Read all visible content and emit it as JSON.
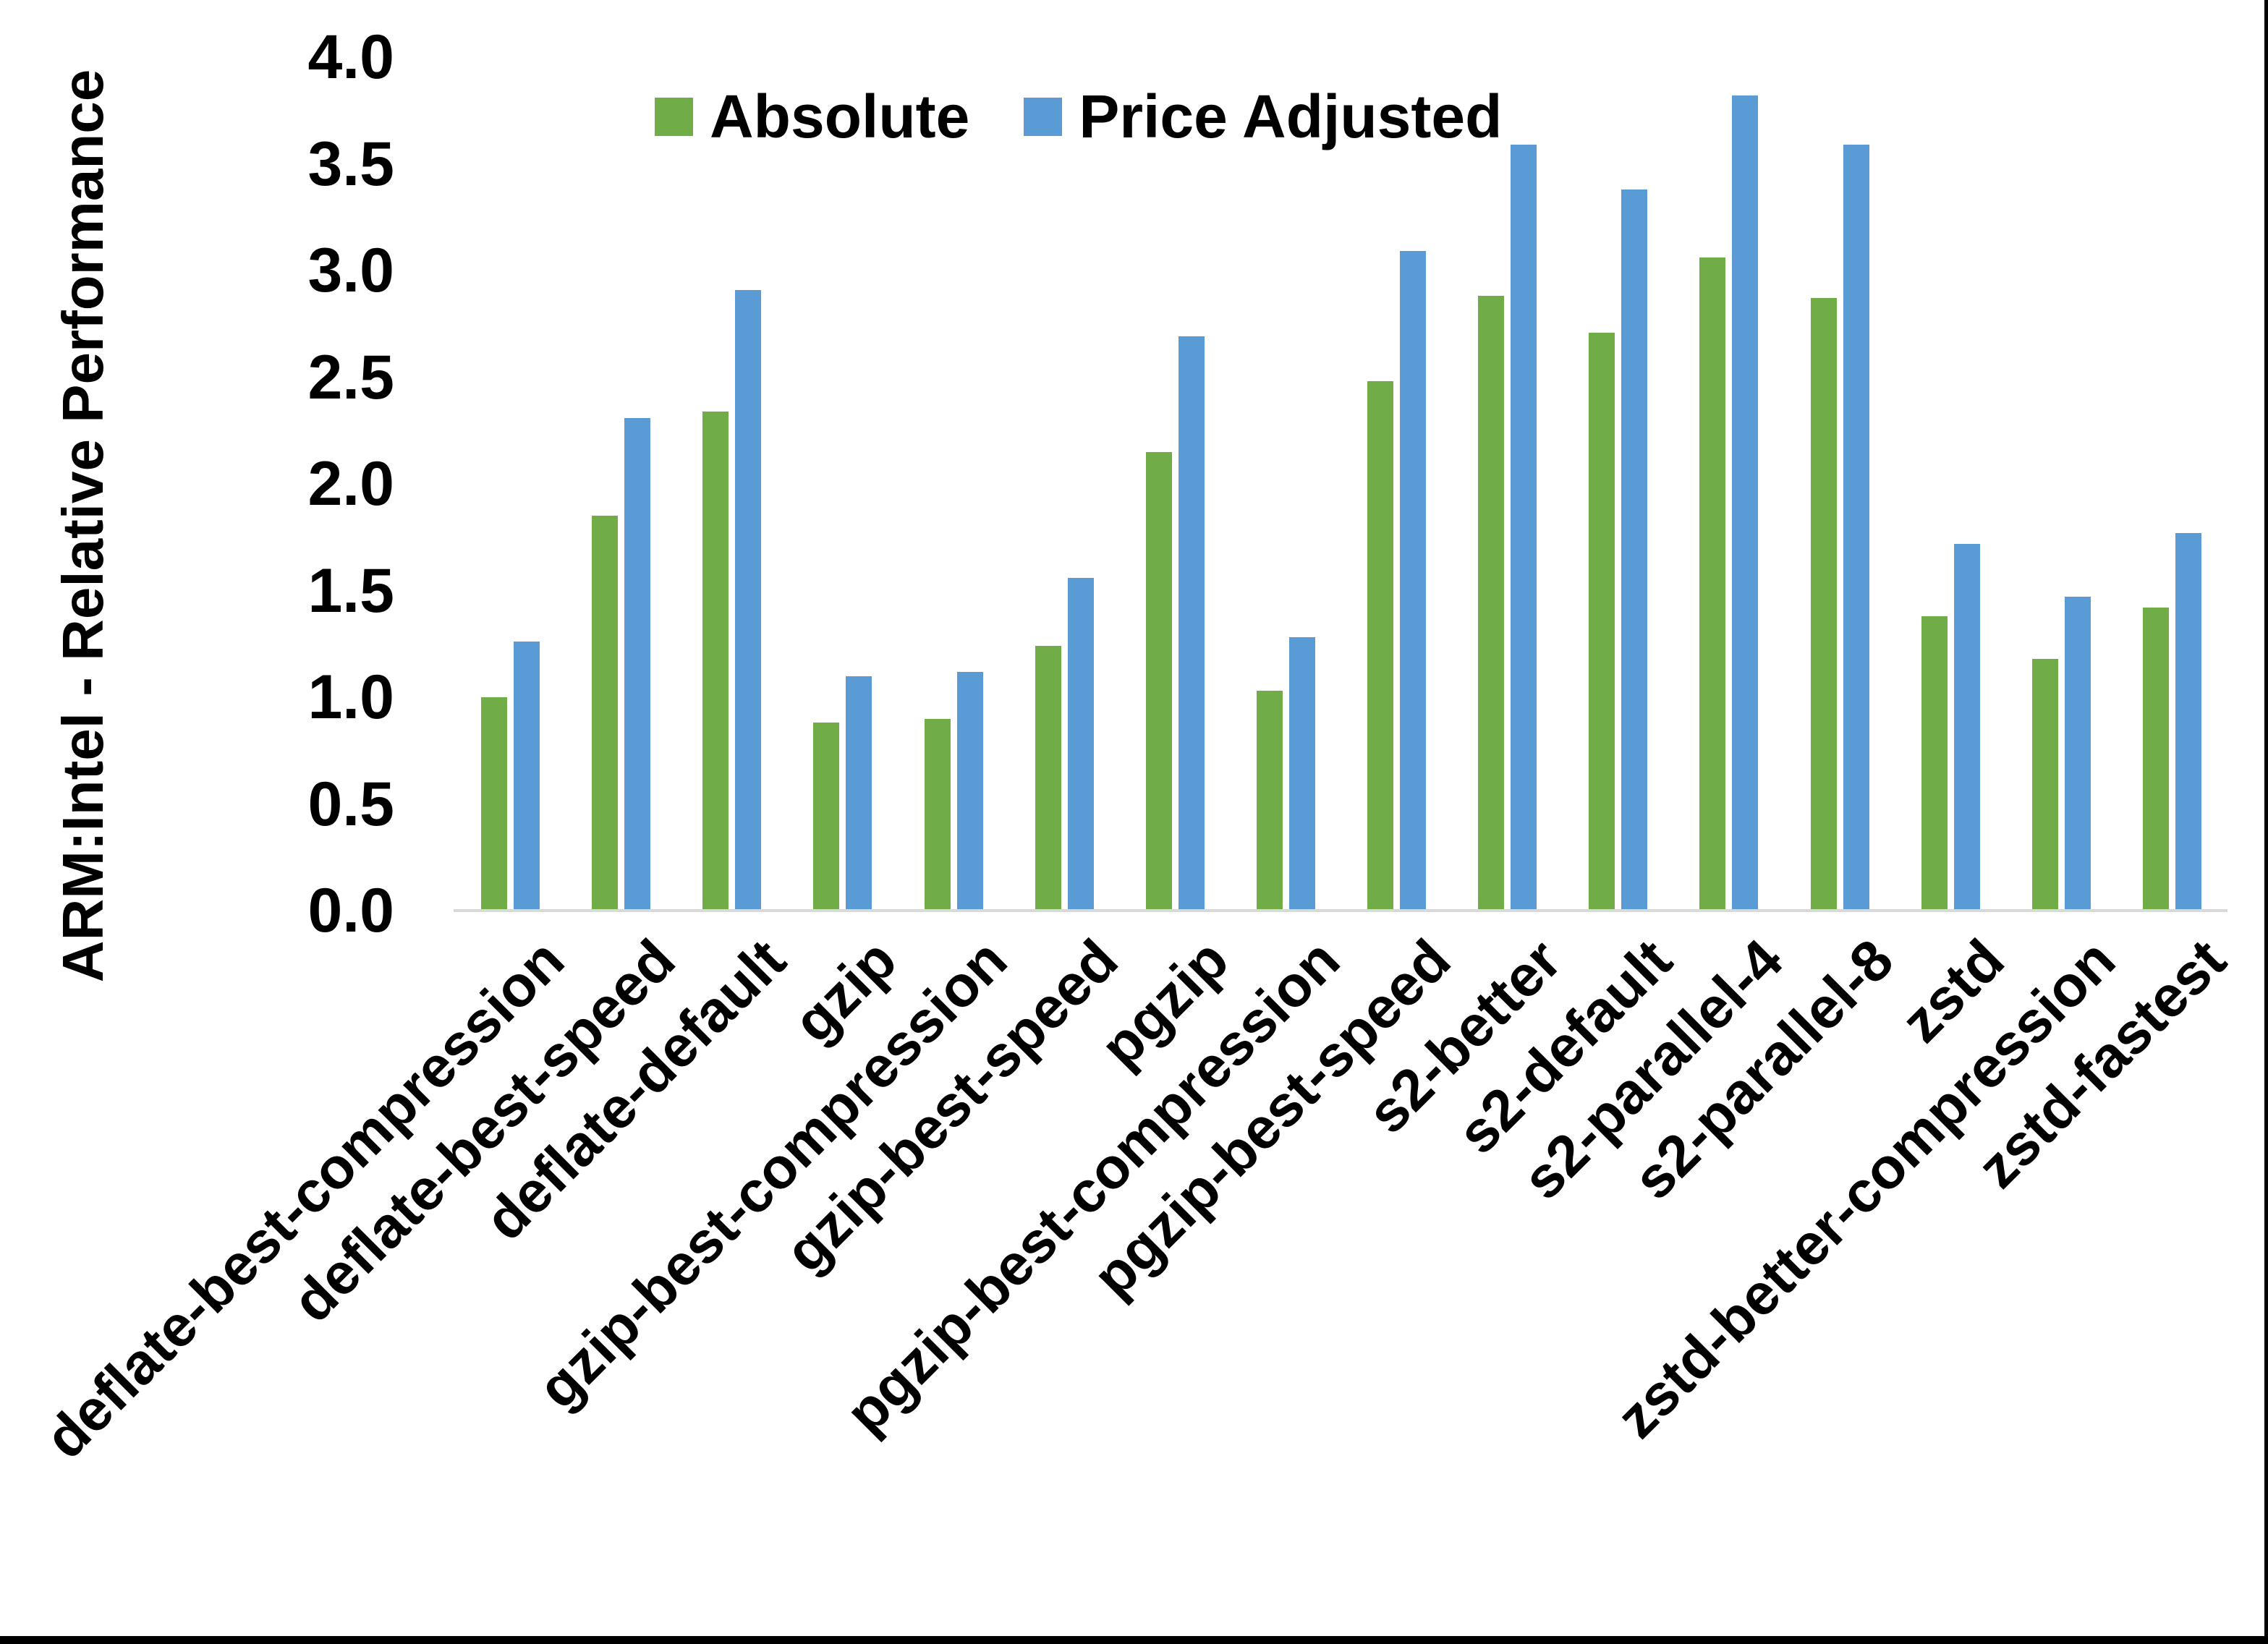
{
  "chart_data": {
    "type": "bar",
    "title": "",
    "ylabel": "ARM:Intel - Relative Performance",
    "xlabel": "",
    "ylim": [
      0.0,
      4.0
    ],
    "ytick_step": 0.5,
    "yticks": [
      "4.0",
      "3.5",
      "3.0",
      "2.5",
      "2.0",
      "1.5",
      "1.0",
      "0.5",
      "0.0"
    ],
    "grid": "off",
    "legend_position": "top-inside",
    "axis_line_color": "#D9D9D9",
    "categories": [
      "deflate-best-compression",
      "deflate-best-speed",
      "deflate-default",
      "gzip",
      "gzip-best-compression",
      "gzip-best-speed",
      "pgzip",
      "pgzip-best-compression",
      "pgzip-best-speed",
      "s2-better",
      "s2-default",
      "s2-parallel-4",
      "s2-parallel-8",
      "zstd",
      "zstd-better-compression",
      "zstd-fastest"
    ],
    "series": [
      {
        "name": "Absolute",
        "color": "#70AD47",
        "values": [
          1.0,
          1.85,
          2.34,
          0.88,
          0.9,
          1.24,
          2.15,
          1.03,
          2.48,
          2.88,
          2.71,
          3.06,
          2.87,
          1.38,
          1.18,
          1.42
        ]
      },
      {
        "name": "Price Adjusted",
        "color": "#5B9BD5",
        "values": [
          1.26,
          2.31,
          2.91,
          1.1,
          1.12,
          1.56,
          2.69,
          1.28,
          3.09,
          3.59,
          3.38,
          3.82,
          3.59,
          1.72,
          1.47,
          1.77
        ]
      }
    ]
  },
  "frame": {
    "right_border_color": "#000000",
    "bottom_border_color": "#000000",
    "background": "#FFFFFF",
    "text_color": "#000000"
  }
}
